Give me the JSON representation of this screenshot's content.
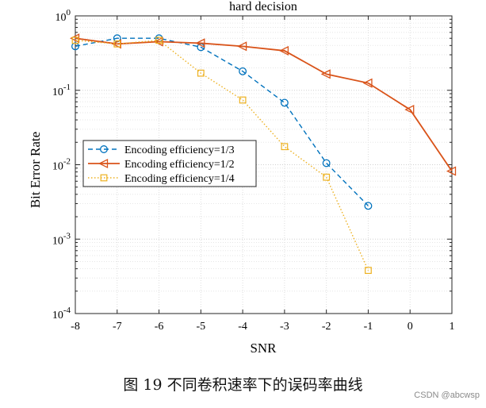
{
  "chart_data": {
    "type": "line",
    "title": "hard decision",
    "xlabel": "SNR",
    "ylabel": "Bit Error Rate",
    "yscale": "log",
    "xlim": [
      -8,
      1
    ],
    "ylim": [
      0.0001,
      1
    ],
    "xticks": [
      "-8",
      "-7",
      "-6",
      "-5",
      "-4",
      "-3",
      "-2",
      "-1",
      "0",
      "1"
    ],
    "yticks": [
      {
        "base": "10",
        "exp": "-4"
      },
      {
        "base": "10",
        "exp": "-3"
      },
      {
        "base": "10",
        "exp": "-2"
      },
      {
        "base": "10",
        "exp": "-1"
      },
      {
        "base": "10",
        "exp": "0"
      }
    ],
    "grid": true,
    "legend_position": "middle-left",
    "series": [
      {
        "name": "Encoding efficiency=1/3",
        "color": "#0072BD",
        "line_style": "dashed",
        "marker": "circle",
        "x": [
          -8,
          -7,
          -6,
          -5,
          -4,
          -3,
          -2,
          -1
        ],
        "y": [
          0.39,
          0.5,
          0.5,
          0.38,
          0.18,
          0.068,
          0.0105,
          0.0028
        ]
      },
      {
        "name": "Encoding efficiency=1/2",
        "color": "#D95319",
        "line_style": "solid",
        "marker": "triangle-left",
        "x": [
          -8,
          -7,
          -6,
          -5,
          -4,
          -3,
          -2,
          -1,
          0,
          1
        ],
        "y": [
          0.5,
          0.42,
          0.45,
          0.43,
          0.39,
          0.34,
          0.165,
          0.125,
          0.055,
          0.0082
        ]
      },
      {
        "name": "Encoding efficiency=1/4",
        "color": "#EDB120",
        "line_style": "dotted",
        "marker": "square",
        "x": [
          -8,
          -7,
          -6,
          -5,
          -4,
          -3,
          -2,
          -1
        ],
        "y": [
          0.47,
          0.42,
          0.47,
          0.17,
          0.074,
          0.0175,
          0.0068,
          0.00038
        ]
      }
    ]
  },
  "caption": "图 19  不同卷积速率下的误码率曲线",
  "watermark": "CSDN @abcwsp"
}
